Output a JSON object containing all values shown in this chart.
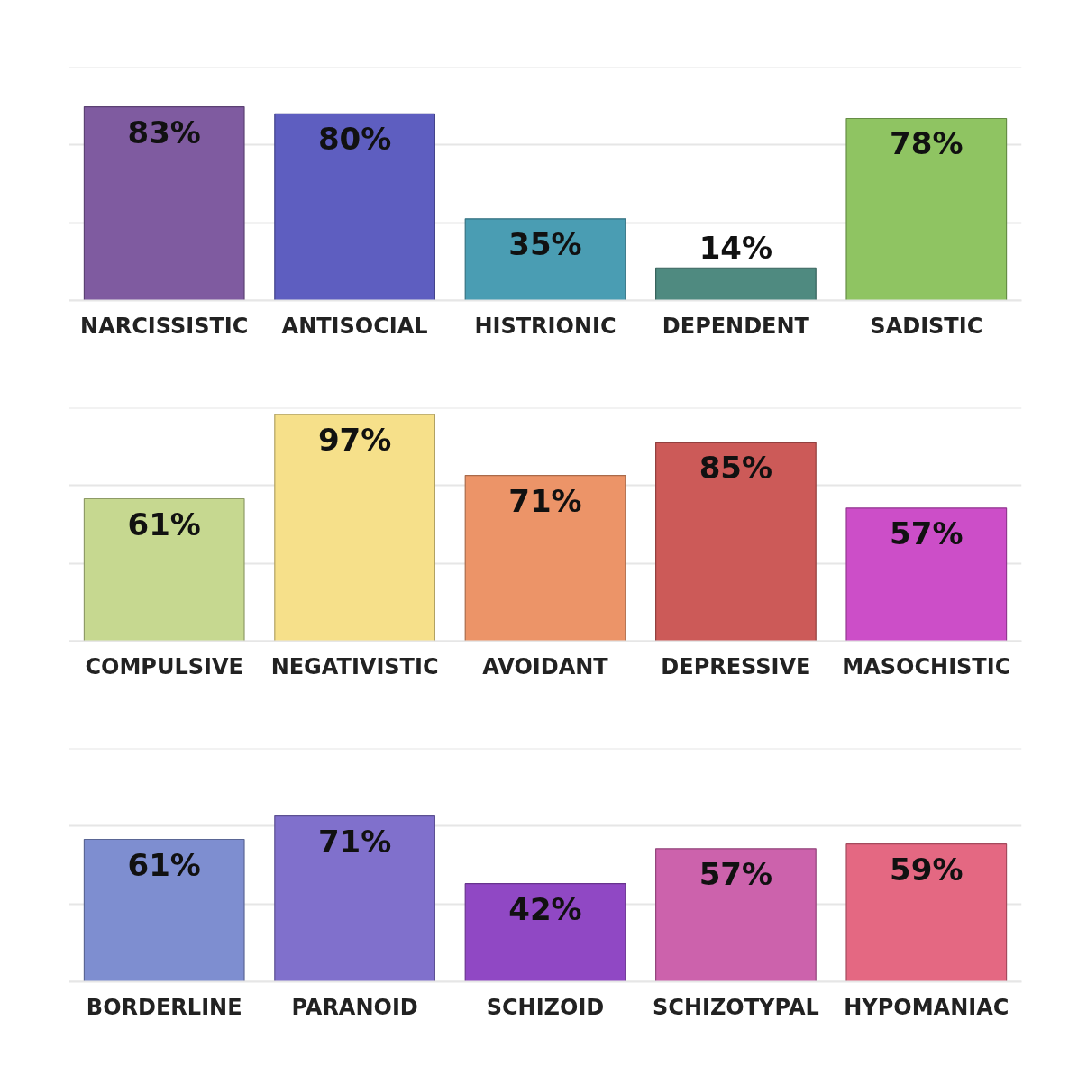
{
  "chart_data": [
    {
      "type": "bar",
      "categories": [
        "NARCISSISTIC",
        "ANTISOCIAL",
        "HISTRIONIC",
        "DEPENDENT",
        "SADISTIC"
      ],
      "values": [
        83,
        80,
        35,
        14,
        78
      ],
      "value_labels": [
        "83%",
        "80%",
        "35%",
        "14%",
        "78%"
      ],
      "colors": [
        "#7f5ba0",
        "#5e5ec0",
        "#4a9db3",
        "#4f8a80",
        "#8fc462"
      ],
      "ylim": [
        0,
        100
      ],
      "yticks": [
        {
          "value": 0,
          "label": null
        },
        {
          "value": 33.3,
          "label": null
        },
        {
          "value": 66.7,
          "label": null
        },
        {
          "value": 100,
          "label": null
        }
      ],
      "grid": "y",
      "tick_labels": "x"
    },
    {
      "type": "bar",
      "categories": [
        "COMPULSIVE",
        "NEGATIVISTIC",
        "AVOIDANT",
        "DEPRESSIVE",
        "MASOCHISTIC"
      ],
      "values": [
        61,
        97,
        71,
        85,
        57
      ],
      "value_labels": [
        "61%",
        "97%",
        "71%",
        "85%",
        "57%"
      ],
      "colors": [
        "#c6d890",
        "#f6e08a",
        "#ec9468",
        "#cc5a58",
        "#cc4ec8"
      ],
      "ylim": [
        0,
        100
      ],
      "yticks": [
        {
          "value": 0,
          "label": null
        },
        {
          "value": 33.3,
          "label": null
        },
        {
          "value": 66.7,
          "label": null
        },
        {
          "value": 100,
          "label": null
        }
      ],
      "grid": "y",
      "tick_labels": "x"
    },
    {
      "type": "bar",
      "categories": [
        "BORDERLINE",
        "PARANOID",
        "SCHIZOID",
        "SCHIZOTYPAL",
        "HYPOMANIAC"
      ],
      "values": [
        61,
        71,
        42,
        57,
        59
      ],
      "value_labels": [
        "61%",
        "71%",
        "42%",
        "57%",
        "59%"
      ],
      "colors": [
        "#7e8ed0",
        "#8070cc",
        "#9048c4",
        "#cc62ac",
        "#e46882"
      ],
      "ylim": [
        0,
        100
      ],
      "yticks": [
        {
          "value": 0,
          "label": null
        },
        {
          "value": 33.3,
          "label": null
        },
        {
          "value": 66.7,
          "label": null
        },
        {
          "value": 100,
          "label": null
        }
      ],
      "grid": "y",
      "tick_labels": "x"
    }
  ]
}
